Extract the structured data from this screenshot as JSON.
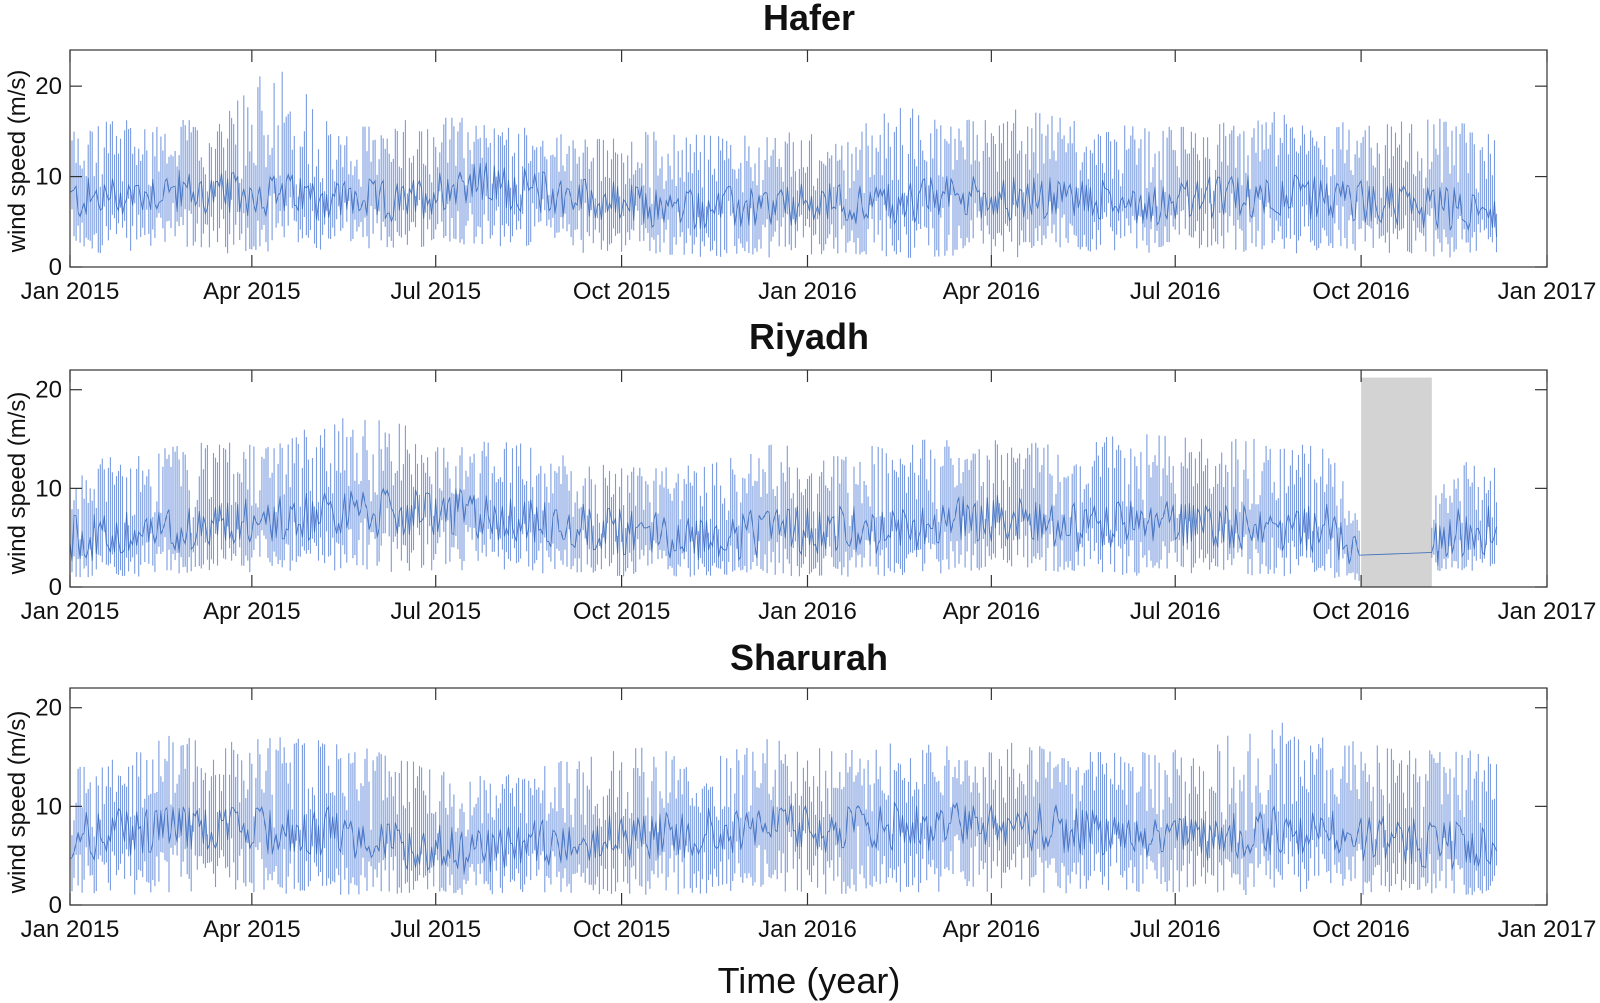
{
  "figure": {
    "xlabel": "Time (year)"
  },
  "chart_data": [
    {
      "type": "line",
      "title": "Hafer",
      "ylabel": "wind speed (m/s)",
      "ylim": [
        0,
        24
      ],
      "yticks": [
        0,
        10,
        20
      ],
      "x_range": [
        "2015-01-01",
        "2017-01-01"
      ],
      "x_ticks": [
        "2015-01-01",
        "2015-04-01",
        "2015-07-01",
        "2015-10-01",
        "2016-01-01",
        "2016-04-01",
        "2016-07-01",
        "2016-10-01",
        "2017-01-01"
      ],
      "x_tick_labels": [
        "Jan 2015",
        "Apr 2015",
        "Jul 2015",
        "Oct 2015",
        "Jan 2016",
        "Apr 2016",
        "Jul 2016",
        "Oct 2016",
        "Jan 2017"
      ],
      "data_end": "2016-12-07",
      "series": [
        {
          "color": "#2e63b8",
          "envelope_color": "#7a9be0",
          "monthly": {
            "x": [
              "2015-01",
              "2015-02",
              "2015-03",
              "2015-04",
              "2015-05",
              "2015-06",
              "2015-07",
              "2015-08",
              "2015-09",
              "2015-10",
              "2015-11",
              "2015-12",
              "2016-01",
              "2016-02",
              "2016-03",
              "2016-04",
              "2016-05",
              "2016-06",
              "2016-07",
              "2016-08",
              "2016-09",
              "2016-10",
              "2016-11",
              "2016-12"
            ],
            "mean": [
              7.5,
              8.5,
              8,
              8,
              7.5,
              7,
              9.5,
              8.5,
              7.5,
              6.5,
              6.5,
              6.5,
              7,
              7,
              8,
              7.5,
              7.5,
              7,
              7.5,
              8,
              7.5,
              7,
              6.5,
              5.5
            ],
            "min": [
              1.5,
              2,
              1.5,
              1.5,
              2,
              2,
              2.5,
              2,
              1.5,
              1.5,
              1,
              1,
              1.5,
              1,
              1,
              1,
              1.5,
              1.5,
              2,
              1.5,
              1.5,
              1.5,
              1,
              1.5
            ],
            "max": [
              16,
              16.5,
              16,
              23.5,
              15,
              16.5,
              16.5,
              15.5,
              14,
              15,
              14.5,
              15,
              14.5,
              18,
              16,
              17.5,
              16,
              15.5,
              15.5,
              17.5,
              16,
              16,
              16.5,
              15
            ]
          }
        }
      ]
    },
    {
      "type": "line",
      "title": "Riyadh",
      "ylabel": "wind speed (m/s)",
      "ylim": [
        0,
        22
      ],
      "yticks": [
        0,
        10,
        20
      ],
      "x_range": [
        "2015-01-01",
        "2017-01-01"
      ],
      "x_ticks": [
        "2015-01-01",
        "2015-04-01",
        "2015-07-01",
        "2015-10-01",
        "2016-01-01",
        "2016-04-01",
        "2016-07-01",
        "2016-10-01",
        "2017-01-01"
      ],
      "x_tick_labels": [
        "Jan 2015",
        "Apr 2015",
        "Jul 2015",
        "Oct 2015",
        "Jan 2016",
        "Apr 2016",
        "Jul 2016",
        "Oct 2016",
        "Jan 2017"
      ],
      "data_end": "2016-12-07",
      "missing_data": {
        "start": "2016-10-01",
        "end": "2016-11-05",
        "color": "#d3d3d3"
      },
      "series": [
        {
          "color": "#2e63b8",
          "envelope_color": "#7a9be0",
          "monthly": {
            "x": [
              "2015-01",
              "2015-02",
              "2015-03",
              "2015-04",
              "2015-05",
              "2015-06",
              "2015-07",
              "2015-08",
              "2015-09",
              "2015-10",
              "2015-11",
              "2015-12",
              "2016-01",
              "2016-02",
              "2016-03",
              "2016-04",
              "2016-05",
              "2016-06",
              "2016-07",
              "2016-08",
              "2016-09",
              "2016-10",
              "2016-11",
              "2016-12"
            ],
            "mean": [
              5,
              5.5,
              6.5,
              7,
              7.5,
              7.5,
              7.5,
              6.5,
              6,
              5.5,
              5,
              5.5,
              6,
              5.5,
              7,
              7,
              6,
              6.5,
              6.5,
              6,
              6,
              0,
              5.5,
              6
            ],
            "min": [
              1,
              1,
              1.5,
              1.5,
              1.5,
              1.5,
              1.5,
              1.5,
              1,
              1,
              1,
              1,
              1,
              1,
              1.5,
              1.5,
              1,
              1,
              1.5,
              1,
              1,
              0,
              1.5,
              1.5
            ],
            "max": [
              13,
              14,
              15,
              15,
              17.5,
              16.5,
              15,
              14.5,
              12.5,
              12,
              12.5,
              14.5,
              14,
              14.5,
              15.5,
              14.5,
              15,
              15.5,
              15,
              15,
              14,
              0,
              13,
              12
            ]
          }
        }
      ]
    },
    {
      "type": "line",
      "title": "Sharurah",
      "ylabel": "wind speed (m/s)",
      "ylim": [
        0,
        22
      ],
      "yticks": [
        0,
        10,
        20
      ],
      "x_range": [
        "2015-01-01",
        "2017-01-01"
      ],
      "x_ticks": [
        "2015-01-01",
        "2015-04-01",
        "2015-07-01",
        "2015-10-01",
        "2016-01-01",
        "2016-04-01",
        "2016-07-01",
        "2016-10-01",
        "2017-01-01"
      ],
      "x_tick_labels": [
        "Jan 2015",
        "Apr 2015",
        "Jul 2015",
        "Oct 2015",
        "Jan 2016",
        "Apr 2016",
        "Jul 2016",
        "Oct 2016",
        "Jan 2017"
      ],
      "data_end": "2016-12-07",
      "series": [
        {
          "color": "#2e63b8",
          "envelope_color": "#7a9be0",
          "monthly": {
            "x": [
              "2015-01",
              "2015-02",
              "2015-03",
              "2015-04",
              "2015-05",
              "2015-06",
              "2015-07",
              "2015-08",
              "2015-09",
              "2015-10",
              "2015-11",
              "2015-12",
              "2016-01",
              "2016-02",
              "2016-03",
              "2016-04",
              "2016-05",
              "2016-06",
              "2016-07",
              "2016-08",
              "2016-09",
              "2016-10",
              "2016-11",
              "2016-12"
            ],
            "mean": [
              7,
              8,
              7.5,
              7.5,
              7.5,
              6,
              5.5,
              6,
              7,
              7,
              7.5,
              8,
              7.5,
              8,
              8,
              8,
              7.5,
              7,
              6.5,
              7.5,
              7.5,
              6.5,
              6,
              6.5
            ],
            "min": [
              1,
              1,
              1,
              1,
              1,
              1,
              1,
              1,
              1,
              1,
              1,
              1,
              1,
              1,
              1,
              1,
              1,
              1,
              1,
              1,
              1,
              1,
              1,
              1
            ],
            "max": [
              14,
              17.5,
              16.5,
              17,
              16.5,
              15,
              13,
              13.5,
              15.5,
              16,
              15,
              17,
              15.5,
              16.5,
              16,
              16.5,
              15.5,
              15.5,
              16,
              19,
              17,
              16,
              15.5,
              16
            ]
          }
        }
      ]
    }
  ]
}
